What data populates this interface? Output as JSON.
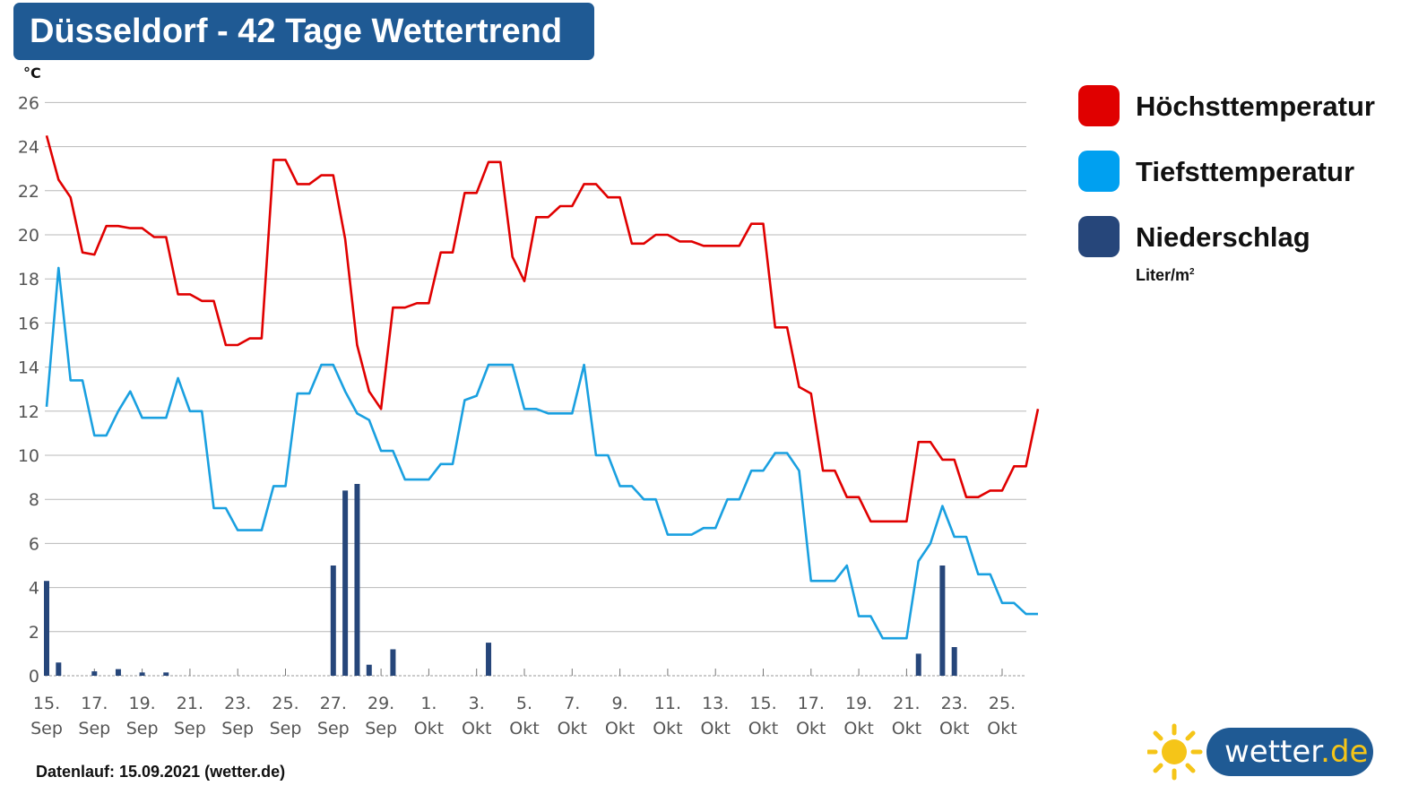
{
  "title": "Düsseldorf - 42 Tage Wettertrend",
  "y_unit": "°C",
  "legend": {
    "items": [
      {
        "label": "Höchsttemperatur",
        "color": "#e00000"
      },
      {
        "label": "Tiefsttemperatur",
        "color": "#00a0f0"
      },
      {
        "label": "Niederschlag",
        "color": "#26467a"
      }
    ],
    "precip_unit": "Liter/m",
    "precip_unit_sup": "2"
  },
  "footer": "Datenlauf: 15.09.2021 (wetter.de)",
  "logo": {
    "text_main": "wetter",
    "text_suffix": ".de"
  },
  "colors": {
    "high": "#e00000",
    "low": "#1aa0e0",
    "precip": "#26467a",
    "brand": "#1f5a94",
    "sun": "#f5c518"
  },
  "chart_data": {
    "type": "line",
    "x_dates_start": "2021-09-15",
    "x_tick_labels": [
      [
        "15.",
        "Sep"
      ],
      [
        "17.",
        "Sep"
      ],
      [
        "19.",
        "Sep"
      ],
      [
        "21.",
        "Sep"
      ],
      [
        "23.",
        "Sep"
      ],
      [
        "25.",
        "Sep"
      ],
      [
        "27.",
        "Sep"
      ],
      [
        "29.",
        "Sep"
      ],
      [
        "1.",
        "Okt"
      ],
      [
        "3.",
        "Okt"
      ],
      [
        "5.",
        "Okt"
      ],
      [
        "7.",
        "Okt"
      ],
      [
        "9.",
        "Okt"
      ],
      [
        "11.",
        "Okt"
      ],
      [
        "13.",
        "Okt"
      ],
      [
        "15.",
        "Okt"
      ],
      [
        "17.",
        "Okt"
      ],
      [
        "19.",
        "Okt"
      ],
      [
        "21.",
        "Okt"
      ],
      [
        "23.",
        "Okt"
      ],
      [
        "25.",
        "Okt"
      ]
    ],
    "ylim": [
      0,
      26
    ],
    "y_ticks": [
      0,
      2,
      4,
      6,
      8,
      10,
      12,
      14,
      16,
      18,
      20,
      22,
      24,
      26
    ],
    "grid": true,
    "series": [
      {
        "name": "Höchsttemperatur",
        "x": [
          0,
          0.5,
          1,
          1.5,
          2,
          2.5,
          3,
          3.5,
          4,
          4.5,
          5,
          5.5,
          6,
          6.5,
          7,
          7.5,
          8,
          8.5,
          9,
          9.5,
          10,
          10.5,
          11,
          11.5,
          12,
          12.5,
          13,
          13.5,
          14,
          14.5,
          15,
          15.5,
          16,
          16.5,
          17,
          17.5,
          18,
          18.5,
          19,
          19.5,
          20,
          20.5,
          21,
          21.5,
          22,
          22.5,
          23,
          23.5,
          24,
          24.5,
          25,
          25.5,
          26,
          26.5,
          27,
          27.5,
          28,
          28.5,
          29,
          29.5,
          30,
          30.5,
          31,
          31.5,
          32,
          32.5,
          33,
          33.5,
          34,
          34.5,
          35,
          35.5,
          36,
          36.5,
          37,
          37.5,
          38,
          38.5,
          39,
          39.5,
          40,
          40.5,
          41,
          41.5
        ],
        "values": [
          24.5,
          22.5,
          21.7,
          19.2,
          19.1,
          20.4,
          20.4,
          20.3,
          20.3,
          19.9,
          19.9,
          17.3,
          17.3,
          17.0,
          17.0,
          15.0,
          15.0,
          15.3,
          15.3,
          23.4,
          23.4,
          22.3,
          22.3,
          22.7,
          22.7,
          19.8,
          15.0,
          12.9,
          12.1,
          16.7,
          16.7,
          16.9,
          16.9,
          19.2,
          19.2,
          21.9,
          21.9,
          23.3,
          23.3,
          19.0,
          17.9,
          20.8,
          20.8,
          21.3,
          21.3,
          22.3,
          22.3,
          21.7,
          21.7,
          19.6,
          19.6,
          20.0,
          20.0,
          19.7,
          19.7,
          19.5,
          19.5,
          19.5,
          19.5,
          20.5,
          20.5,
          15.8,
          15.8,
          13.1,
          12.8,
          9.3,
          9.3,
          8.1,
          8.1,
          7.0,
          7.0,
          7.0,
          7.0,
          10.6,
          10.6,
          9.8,
          9.8,
          8.1,
          8.1,
          8.4,
          8.4,
          9.5,
          9.5,
          12.1
        ]
      },
      {
        "name": "Tiefsttemperatur",
        "x": [
          0,
          0.5,
          1,
          1.5,
          2,
          2.5,
          3,
          3.5,
          4,
          4.5,
          5,
          5.5,
          6,
          6.5,
          7,
          7.5,
          8,
          8.5,
          9,
          9.5,
          10,
          10.5,
          11,
          11.5,
          12,
          12.5,
          13,
          13.5,
          14,
          14.5,
          15,
          15.5,
          16,
          16.5,
          17,
          17.5,
          18,
          18.5,
          19,
          19.5,
          20,
          20.5,
          21,
          21.5,
          22,
          22.5,
          23,
          23.5,
          24,
          24.5,
          25,
          25.5,
          26,
          26.5,
          27,
          27.5,
          28,
          28.5,
          29,
          29.5,
          30,
          30.5,
          31,
          31.5,
          32,
          32.5,
          33,
          33.5,
          34,
          34.5,
          35,
          35.5,
          36,
          36.5,
          37,
          37.5,
          38,
          38.5,
          39,
          39.5,
          40,
          40.5,
          41,
          41.5
        ],
        "values": [
          12.2,
          18.5,
          13.4,
          13.4,
          10.9,
          10.9,
          12.0,
          12.9,
          11.7,
          11.7,
          11.7,
          13.5,
          12.0,
          12.0,
          7.6,
          7.6,
          6.6,
          6.6,
          6.6,
          8.6,
          8.6,
          12.8,
          12.8,
          14.1,
          14.1,
          12.9,
          11.9,
          11.6,
          10.2,
          10.2,
          8.9,
          8.9,
          8.9,
          9.6,
          9.6,
          12.5,
          12.7,
          14.1,
          14.1,
          14.1,
          12.1,
          12.1,
          11.9,
          11.9,
          11.9,
          14.1,
          10.0,
          10.0,
          8.6,
          8.6,
          8.0,
          8.0,
          6.4,
          6.4,
          6.4,
          6.7,
          6.7,
          8.0,
          8.0,
          9.3,
          9.3,
          10.1,
          10.1,
          9.3,
          4.3,
          4.3,
          4.3,
          5.0,
          2.7,
          2.7,
          1.7,
          1.7,
          1.7,
          5.2,
          6.0,
          7.7,
          6.3,
          6.3,
          4.6,
          4.6,
          3.3,
          3.3,
          2.8,
          2.8
        ]
      },
      {
        "name": "Niederschlag",
        "type": "bar",
        "x": [
          0,
          0.5,
          1,
          1.5,
          2,
          2.5,
          3,
          3.5,
          4,
          4.5,
          5,
          5.5,
          6,
          6.5,
          7,
          7.5,
          8,
          8.5,
          9,
          9.5,
          10,
          10.5,
          11,
          11.5,
          12,
          12.5,
          13,
          13.5,
          14,
          14.5,
          15,
          15.5,
          16,
          16.5,
          17,
          17.5,
          18,
          18.5,
          19,
          19.5,
          20,
          20.5,
          21,
          21.5,
          22,
          22.5,
          23,
          23.5,
          24,
          24.5,
          25,
          25.5,
          26,
          26.5,
          27,
          27.5,
          28,
          28.5,
          29,
          29.5,
          30,
          30.5,
          31,
          31.5,
          32,
          32.5,
          33,
          33.5,
          34,
          34.5,
          35,
          35.5,
          36,
          36.5,
          37,
          37.5,
          38,
          38.5,
          39,
          39.5,
          40,
          40.5,
          41,
          41.5
        ],
        "values": [
          4.3,
          0.6,
          0,
          0,
          0.2,
          0,
          0.3,
          0,
          0.15,
          0,
          0.15,
          0,
          0,
          0,
          0,
          0,
          0,
          0,
          0,
          0,
          0,
          0,
          0,
          0,
          5.0,
          8.4,
          8.7,
          0.5,
          0,
          1.2,
          0,
          0,
          0,
          0,
          0,
          0,
          0,
          1.5,
          0,
          0,
          0,
          0,
          0,
          0,
          0,
          0,
          0,
          0,
          0,
          0,
          0,
          0,
          0,
          0,
          0,
          0,
          0,
          0,
          0,
          0,
          0,
          0,
          0,
          0,
          0,
          0,
          0,
          0,
          0,
          0,
          0,
          0,
          0,
          1.0,
          0,
          5.0,
          1.3,
          0,
          0,
          0,
          0,
          0,
          0,
          0
        ]
      }
    ]
  }
}
